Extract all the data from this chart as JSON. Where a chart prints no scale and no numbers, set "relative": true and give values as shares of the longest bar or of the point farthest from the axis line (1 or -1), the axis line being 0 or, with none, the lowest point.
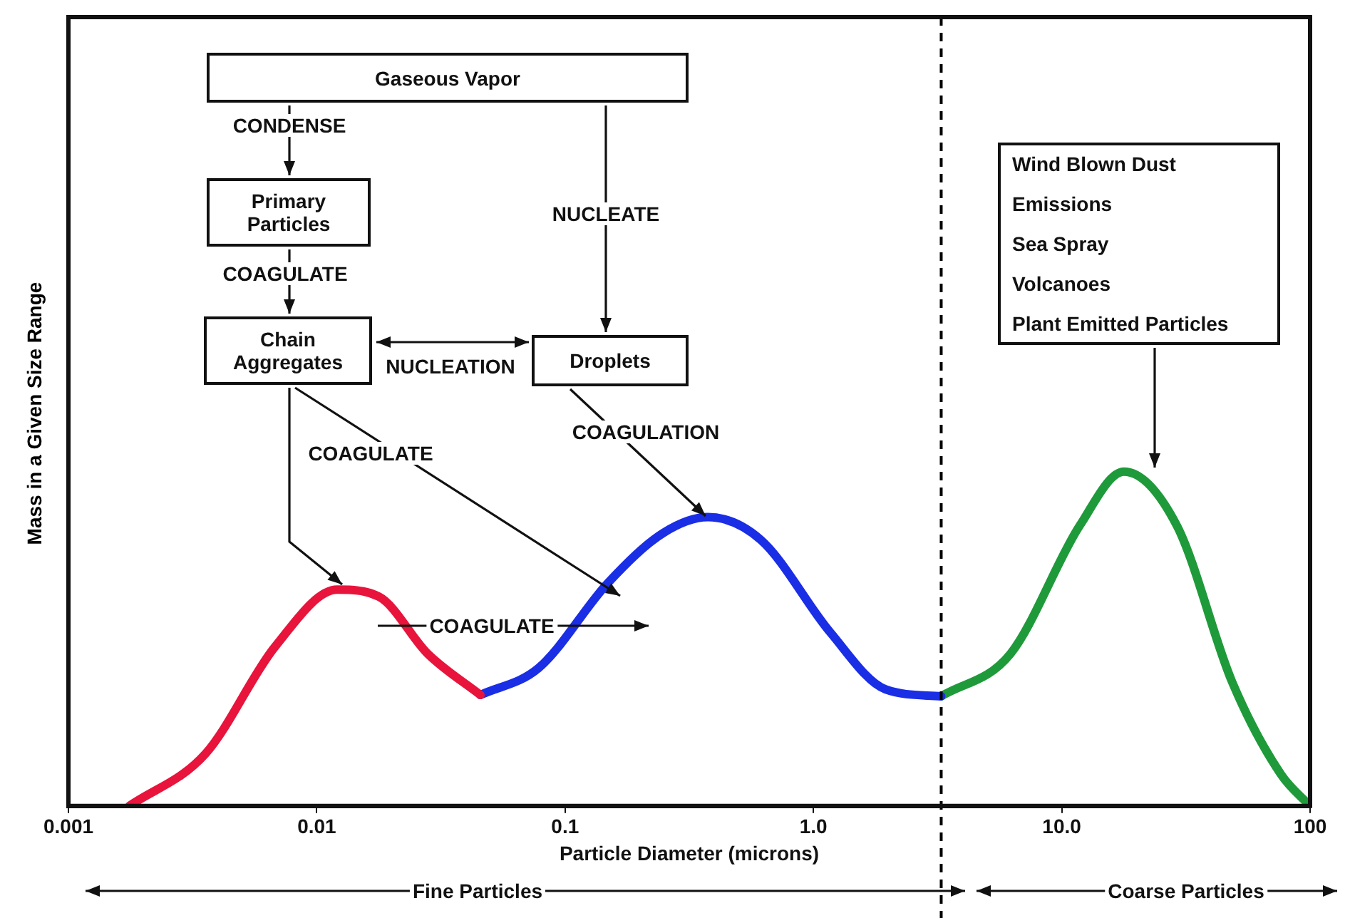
{
  "chart_data": {
    "type": "line",
    "relative": true,
    "log": "x",
    "xlabel": "Particle Diameter (microns)",
    "ylabel": "Mass in a Given Size Range",
    "xlim": [
      0.001,
      100
    ],
    "xticks": [
      {
        "value": 0.001,
        "label": "0.001"
      },
      {
        "value": 0.01,
        "label": "0.01"
      },
      {
        "value": 0.1,
        "label": "0.1"
      },
      {
        "value": 1,
        "label": "1.0"
      },
      {
        "value": 10,
        "label": "10.0"
      },
      {
        "value": 100,
        "label": "100"
      }
    ],
    "grid": false,
    "legend": false,
    "marker": "none",
    "line_style": "solid",
    "series": [
      {
        "color": "#e8143c",
        "x": [
          0.00176,
          0.00357,
          0.0068,
          0.0121,
          0.0178,
          0.028,
          0.0456
        ],
        "values": [
          0,
          0.157,
          0.477,
          0.647,
          0.626,
          0.455,
          0.332
        ]
      },
      {
        "color": "#1a2ee6",
        "x": [
          0.0456,
          0.0783,
          0.149,
          0.249,
          0.376,
          0.614,
          1.17,
          1.95,
          3.27
        ],
        "values": [
          0.332,
          0.413,
          0.668,
          0.817,
          0.864,
          0.796,
          0.519,
          0.349,
          0.328
        ]
      },
      {
        "color": "#1f9a3a",
        "x": [
          3.27,
          6.21,
          11.8,
          17.8,
          29.1,
          48.6,
          76.4,
          100
        ],
        "values": [
          0.328,
          0.455,
          0.838,
          1,
          0.838,
          0.37,
          0.094,
          0
        ]
      }
    ],
    "ref_lines": [
      {
        "axis": "x",
        "value": 3.27,
        "line_style": "dashed",
        "color": "#000000"
      }
    ],
    "annotations": [
      "Gaseous Vapor",
      "CONDENSE",
      "Primary Particles",
      "COAGULATE",
      "Chain Aggregates",
      "NUCLEATION",
      "Droplets",
      "NUCLEATE",
      "COAGULATION",
      "COAGULATE",
      "COAGULATE",
      "Wind Blown Dust\nEmissions\nSea Spray\nVolcanoes\nPlant Emitted Particles",
      "Fine Particles",
      "Coarse Particles"
    ]
  }
}
